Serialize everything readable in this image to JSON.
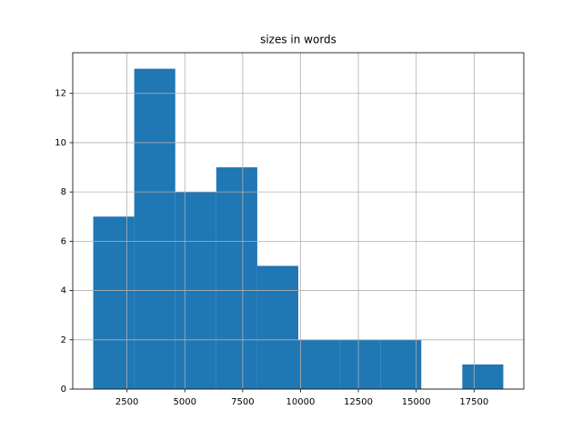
{
  "chart_data": {
    "type": "histogram",
    "title": "sizes in words",
    "bins": [
      1043,
      2815,
      4587,
      6359,
      8131,
      9903,
      11675,
      13447,
      15219,
      16991,
      18763
    ],
    "values": [
      7,
      13,
      8,
      9,
      5,
      2,
      2,
      2,
      0,
      1
    ],
    "color": "#1f77b4",
    "xlim": [
      157,
      19649
    ],
    "xticks": [
      2500,
      5000,
      7500,
      10000,
      12500,
      15000,
      17500
    ],
    "ylim": [
      0,
      13.65
    ],
    "yticks": [
      0,
      2,
      4,
      6,
      8,
      10,
      12
    ],
    "grid": true
  }
}
